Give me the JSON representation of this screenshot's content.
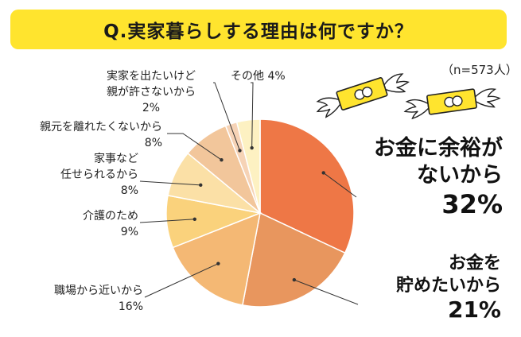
{
  "title": "Q.実家暮らしする理由は何ですか？",
  "sample_note": "（n=573人）",
  "colors": {
    "banner": "#ffe42e",
    "slice_1": "#ee7746",
    "slice_2": "#e8965e",
    "slice_3": "#f4b874",
    "slice_4": "#fad27c",
    "slice_5": "#fbe0a6",
    "slice_6": "#f2c69b",
    "slice_7": "#f6d3b6",
    "slice_8": "#fdf1c2"
  },
  "icons": [
    "flying-money-icon"
  ],
  "chart_data": {
    "type": "pie",
    "title": "Q.実家暮らしする理由は何ですか？",
    "categories": [
      "お金に余裕がないから",
      "お金を貯めたいから",
      "職場から近いから",
      "介護のため",
      "家事など任せられるから",
      "親元を離れたくないから",
      "実家を出たいけど親が許さないから",
      "その他"
    ],
    "values": [
      32,
      21,
      16,
      9,
      8,
      8,
      2,
      4
    ],
    "unit": "%",
    "labels": {
      "l1": [
        "お金に余裕が",
        "ないから",
        "32%"
      ],
      "l2": [
        "お金を",
        "貯めたいから",
        "21%"
      ],
      "l3": [
        "職場から近いから",
        "16%"
      ],
      "l4": [
        "介護のため",
        "9%"
      ],
      "l5": [
        "家事など",
        "任せられるから",
        "8%"
      ],
      "l6": [
        "親元を離れたくないから",
        "8%"
      ],
      "l7": [
        "実家を出たいけど",
        "親が許さないから",
        "2%"
      ],
      "l8": [
        "その他 4%"
      ]
    }
  }
}
